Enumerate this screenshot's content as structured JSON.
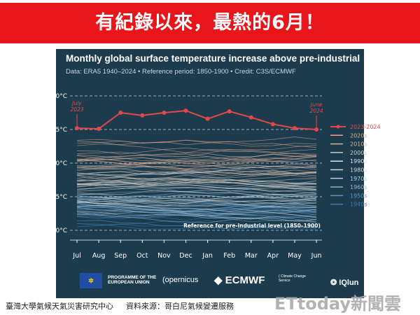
{
  "banner": {
    "title": "有紀錄以來，最熱的6月！"
  },
  "chart_data": {
    "type": "line",
    "title": "Monthly global surface temperature increase above pre-industrial",
    "subtitle": "Data: ERA5 1940–2024 • Reference period: 1850-1900 • Credit: C3S/ECMWF",
    "categories": [
      "Jul",
      "Aug",
      "Sep",
      "Oct",
      "Nov",
      "Dec",
      "Jan",
      "Feb",
      "Mar",
      "Apr",
      "May",
      "Jun"
    ],
    "yticks": [
      "+2.0°C",
      "+1.5°C",
      "+1.0°C",
      "+0.5°C",
      "0°C"
    ],
    "ylim": [
      0,
      2.0
    ],
    "series": [
      {
        "name": "2023-2024",
        "color": "#e8474a",
        "values": [
          1.52,
          1.51,
          1.75,
          1.71,
          1.75,
          1.78,
          1.66,
          1.77,
          1.68,
          1.58,
          1.52,
          1.5
        ]
      }
    ],
    "legend": [
      {
        "label": "2023-2024",
        "color": "#e8474a"
      },
      {
        "label": "2020s",
        "color": "#e8a58a"
      },
      {
        "label": "2010s",
        "color": "#d9b49c"
      },
      {
        "label": "2000s",
        "color": "#d8c6b8"
      },
      {
        "label": "1990s",
        "color": "#e0e0e0"
      },
      {
        "label": "1980s",
        "color": "#d2d8dc"
      },
      {
        "label": "1970s",
        "color": "#b8cad6"
      },
      {
        "label": "1960s",
        "color": "#8fb5d0"
      },
      {
        "label": "1950s",
        "color": "#5d97c6"
      },
      {
        "label": "1940s",
        "color": "#3d7bb8"
      }
    ],
    "annotations": {
      "start": "July 2023",
      "start1": "July",
      "start2": "2023",
      "end1": "June",
      "end2": "2024",
      "reference": "Reference for pre-industrial level (1850–1900)"
    },
    "legend_position": "right"
  },
  "logos": {
    "eu": "PROGRAMME OF THE EUROPEAN UNION",
    "copernicus": "opernicus",
    "ecmwf": "ECMWF",
    "c3s": "Climate Change Service",
    "brand": "IQlun"
  },
  "footer": {
    "left": "臺灣大學氣候天氣災害研究中心",
    "right": "資料來源：哥白尼氣候變遷服務",
    "watermark": "ETtoday新聞雲"
  }
}
